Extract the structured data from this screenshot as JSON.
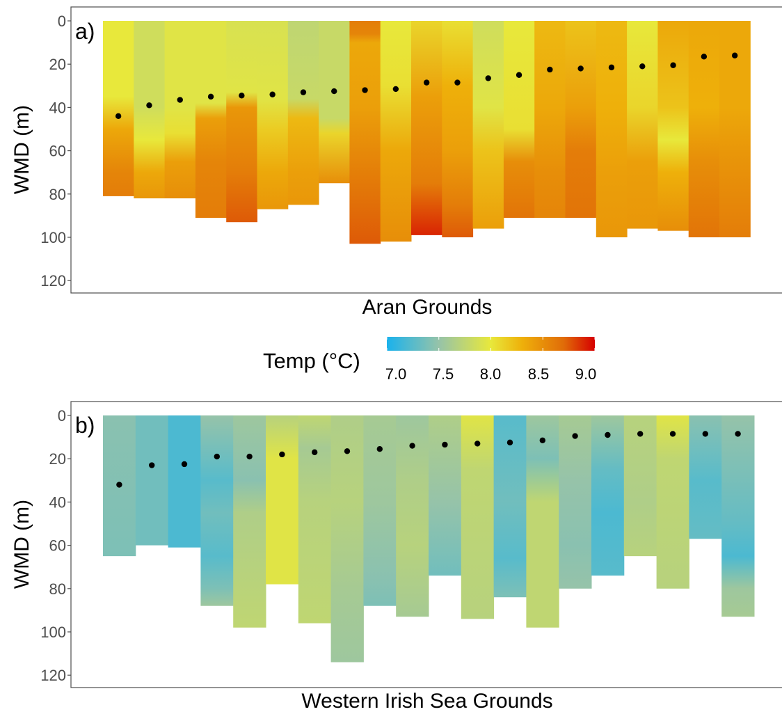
{
  "colors": {
    "cold": "#1ab2ec",
    "cool": "#96c3a9",
    "mild": "#e8e83b",
    "warm": "#eeb00a",
    "hot": "#e06c08",
    "hottest": "#d60000",
    "marker": "#000000",
    "panel_border": "#4d4d4d"
  },
  "legend": {
    "title": "Temp (°C)",
    "ticks": [
      "7.0",
      "7.5",
      "8.0",
      "8.5",
      "9.0"
    ],
    "range": [
      7.0,
      9.0
    ]
  },
  "chart_data": [
    {
      "type": "heatmap",
      "panel_label": "a)",
      "xlabel": "Aran Grounds",
      "ylabel": "WMD (m)",
      "y_reversed": true,
      "ylim": [
        0,
        125
      ],
      "yticks": [
        "0",
        "20",
        "40",
        "60",
        "80",
        "100",
        "120"
      ],
      "grid": false,
      "columns": [
        {
          "max_depth": 81,
          "wmd": 44,
          "profile": [
            [
              0,
              8.0
            ],
            [
              35,
              8.0
            ],
            [
              50,
              8.35
            ],
            [
              70,
              8.55
            ],
            [
              81,
              8.6
            ]
          ]
        },
        {
          "max_depth": 82,
          "wmd": 39,
          "profile": [
            [
              0,
              7.85
            ],
            [
              40,
              7.85
            ],
            [
              55,
              8.0
            ],
            [
              70,
              8.35
            ],
            [
              82,
              8.45
            ]
          ]
        },
        {
          "max_depth": 82,
          "wmd": 36.5,
          "profile": [
            [
              0,
              7.95
            ],
            [
              40,
              7.95
            ],
            [
              52,
              8.05
            ],
            [
              65,
              8.4
            ],
            [
              82,
              8.5
            ]
          ]
        },
        {
          "max_depth": 91,
          "wmd": 35,
          "profile": [
            [
              0,
              7.95
            ],
            [
              38,
              7.95
            ],
            [
              45,
              8.4
            ],
            [
              65,
              8.55
            ],
            [
              91,
              8.6
            ]
          ]
        },
        {
          "max_depth": 93,
          "wmd": 34.5,
          "profile": [
            [
              0,
              7.9
            ],
            [
              33,
              7.95
            ],
            [
              40,
              8.45
            ],
            [
              70,
              8.6
            ],
            [
              93,
              8.75
            ]
          ]
        },
        {
          "max_depth": 87,
          "wmd": 34,
          "profile": [
            [
              0,
              7.9
            ],
            [
              36,
              7.95
            ],
            [
              50,
              8.15
            ],
            [
              70,
              8.35
            ],
            [
              87,
              8.45
            ]
          ]
        },
        {
          "max_depth": 85,
          "wmd": 33,
          "profile": [
            [
              0,
              7.75
            ],
            [
              36,
              7.8
            ],
            [
              45,
              8.25
            ],
            [
              70,
              8.4
            ],
            [
              85,
              8.45
            ]
          ]
        },
        {
          "max_depth": 75,
          "wmd": 32.5,
          "profile": [
            [
              0,
              7.8
            ],
            [
              45,
              7.8
            ],
            [
              52,
              8.1
            ],
            [
              75,
              8.5
            ]
          ]
        },
        {
          "max_depth": 103,
          "wmd": 32,
          "profile": [
            [
              0,
              8.6
            ],
            [
              6,
              8.55
            ],
            [
              10,
              8.35
            ],
            [
              40,
              8.4
            ],
            [
              80,
              8.65
            ],
            [
              103,
              8.75
            ]
          ]
        },
        {
          "max_depth": 102,
          "wmd": 31.5,
          "profile": [
            [
              0,
              8.0
            ],
            [
              30,
              8.05
            ],
            [
              60,
              8.35
            ],
            [
              102,
              8.5
            ]
          ]
        },
        {
          "max_depth": 99,
          "wmd": 28.5,
          "profile": [
            [
              0,
              8.1
            ],
            [
              35,
              8.4
            ],
            [
              75,
              8.6
            ],
            [
              99,
              8.9
            ]
          ]
        },
        {
          "max_depth": 100,
          "wmd": 28.5,
          "profile": [
            [
              0,
              8.05
            ],
            [
              30,
              8.3
            ],
            [
              60,
              8.4
            ],
            [
              85,
              8.6
            ],
            [
              100,
              8.75
            ]
          ]
        },
        {
          "max_depth": 96,
          "wmd": 26.5,
          "profile": [
            [
              0,
              7.85
            ],
            [
              40,
              7.95
            ],
            [
              60,
              8.2
            ],
            [
              96,
              8.4
            ]
          ]
        },
        {
          "max_depth": 91,
          "wmd": 25,
          "profile": [
            [
              0,
              8.0
            ],
            [
              50,
              8.05
            ],
            [
              65,
              8.5
            ],
            [
              91,
              8.65
            ]
          ]
        },
        {
          "max_depth": 91,
          "wmd": 22.5,
          "profile": [
            [
              0,
              8.25
            ],
            [
              40,
              8.35
            ],
            [
              70,
              8.5
            ],
            [
              91,
              8.55
            ]
          ]
        },
        {
          "max_depth": 91,
          "wmd": 22,
          "profile": [
            [
              0,
              8.2
            ],
            [
              40,
              8.4
            ],
            [
              60,
              8.6
            ],
            [
              91,
              8.65
            ]
          ]
        },
        {
          "max_depth": 100,
          "wmd": 21.5,
          "profile": [
            [
              0,
              8.25
            ],
            [
              40,
              8.3
            ],
            [
              70,
              8.4
            ],
            [
              100,
              8.45
            ]
          ]
        },
        {
          "max_depth": 96,
          "wmd": 21,
          "profile": [
            [
              0,
              8.0
            ],
            [
              40,
              8.1
            ],
            [
              65,
              8.4
            ],
            [
              96,
              8.45
            ]
          ]
        },
        {
          "max_depth": 97,
          "wmd": 20.5,
          "profile": [
            [
              0,
              8.35
            ],
            [
              40,
              8.2
            ],
            [
              55,
              8.0
            ],
            [
              70,
              8.3
            ],
            [
              97,
              8.5
            ]
          ]
        },
        {
          "max_depth": 100,
          "wmd": 16.5,
          "profile": [
            [
              0,
              8.35
            ],
            [
              40,
              8.3
            ],
            [
              65,
              8.5
            ],
            [
              100,
              8.65
            ]
          ]
        },
        {
          "max_depth": 100,
          "wmd": 16,
          "profile": [
            [
              0,
              8.35
            ],
            [
              40,
              8.35
            ],
            [
              60,
              8.45
            ],
            [
              100,
              8.6
            ]
          ]
        }
      ]
    },
    {
      "type": "heatmap",
      "panel_label": "b)",
      "xlabel": "Western Irish Sea Grounds",
      "ylabel": "WMD (m)",
      "y_reversed": true,
      "ylim": [
        0,
        125
      ],
      "yticks": [
        "0",
        "20",
        "40",
        "60",
        "80",
        "100",
        "120"
      ],
      "grid": false,
      "columns": [
        {
          "max_depth": 65,
          "wmd": 32,
          "profile": [
            [
              0,
              7.45
            ],
            [
              65,
              7.4
            ]
          ]
        },
        {
          "max_depth": 60,
          "wmd": 23,
          "profile": [
            [
              0,
              7.35
            ],
            [
              60,
              7.35
            ]
          ]
        },
        {
          "max_depth": 61,
          "wmd": 22.5,
          "profile": [
            [
              0,
              7.2
            ],
            [
              61,
              7.2
            ]
          ]
        },
        {
          "max_depth": 88,
          "wmd": 19,
          "profile": [
            [
              0,
              7.5
            ],
            [
              30,
              7.25
            ],
            [
              45,
              7.35
            ],
            [
              65,
              7.25
            ],
            [
              80,
              7.4
            ],
            [
              88,
              7.55
            ]
          ]
        },
        {
          "max_depth": 98,
          "wmd": 19,
          "profile": [
            [
              0,
              7.55
            ],
            [
              30,
              7.45
            ],
            [
              45,
              7.65
            ],
            [
              98,
              7.75
            ]
          ]
        },
        {
          "max_depth": 78,
          "wmd": 18,
          "profile": [
            [
              0,
              7.7
            ],
            [
              20,
              7.95
            ],
            [
              78,
              7.95
            ]
          ]
        },
        {
          "max_depth": 96,
          "wmd": 17,
          "profile": [
            [
              0,
              7.75
            ],
            [
              15,
              7.6
            ],
            [
              40,
              7.7
            ],
            [
              96,
              7.75
            ]
          ]
        },
        {
          "max_depth": 114,
          "wmd": 16.5,
          "profile": [
            [
              0,
              7.65
            ],
            [
              40,
              7.7
            ],
            [
              80,
              7.6
            ],
            [
              114,
              7.55
            ]
          ]
        },
        {
          "max_depth": 88,
          "wmd": 15.5,
          "profile": [
            [
              0,
              7.6
            ],
            [
              40,
              7.55
            ],
            [
              75,
              7.45
            ],
            [
              88,
              7.4
            ]
          ]
        },
        {
          "max_depth": 93,
          "wmd": 14,
          "profile": [
            [
              0,
              7.55
            ],
            [
              30,
              7.65
            ],
            [
              60,
              7.7
            ],
            [
              93,
              7.6
            ]
          ]
        },
        {
          "max_depth": 74,
          "wmd": 13.5,
          "profile": [
            [
              0,
              7.65
            ],
            [
              40,
              7.5
            ],
            [
              74,
              7.35
            ]
          ]
        },
        {
          "max_depth": 94,
          "wmd": 13,
          "profile": [
            [
              0,
              7.95
            ],
            [
              25,
              7.75
            ],
            [
              94,
              7.7
            ]
          ]
        },
        {
          "max_depth": 84,
          "wmd": 12.5,
          "profile": [
            [
              0,
              7.25
            ],
            [
              40,
              7.35
            ],
            [
              66,
              7.25
            ],
            [
              84,
              7.4
            ]
          ]
        },
        {
          "max_depth": 98,
          "wmd": 11.5,
          "profile": [
            [
              0,
              7.55
            ],
            [
              20,
              7.4
            ],
            [
              40,
              7.75
            ],
            [
              98,
              7.75
            ]
          ]
        },
        {
          "max_depth": 80,
          "wmd": 9.5,
          "profile": [
            [
              0,
              7.6
            ],
            [
              30,
              7.5
            ],
            [
              60,
              7.45
            ],
            [
              80,
              7.5
            ]
          ]
        },
        {
          "max_depth": 74,
          "wmd": 9,
          "profile": [
            [
              0,
              7.55
            ],
            [
              25,
              7.3
            ],
            [
              45,
              7.2
            ],
            [
              74,
              7.25
            ]
          ]
        },
        {
          "max_depth": 65,
          "wmd": 8.5,
          "profile": [
            [
              0,
              7.7
            ],
            [
              40,
              7.65
            ],
            [
              65,
              7.7
            ]
          ]
        },
        {
          "max_depth": 80,
          "wmd": 8.5,
          "profile": [
            [
              0,
              7.95
            ],
            [
              20,
              7.75
            ],
            [
              80,
              7.7
            ]
          ]
        },
        {
          "max_depth": 57,
          "wmd": 8.5,
          "profile": [
            [
              0,
              7.45
            ],
            [
              30,
              7.25
            ],
            [
              57,
              7.3
            ]
          ]
        },
        {
          "max_depth": 93,
          "wmd": 8.5,
          "profile": [
            [
              0,
              7.5
            ],
            [
              50,
              7.3
            ],
            [
              65,
              7.2
            ],
            [
              80,
              7.55
            ],
            [
              93,
              7.6
            ]
          ]
        }
      ]
    }
  ]
}
